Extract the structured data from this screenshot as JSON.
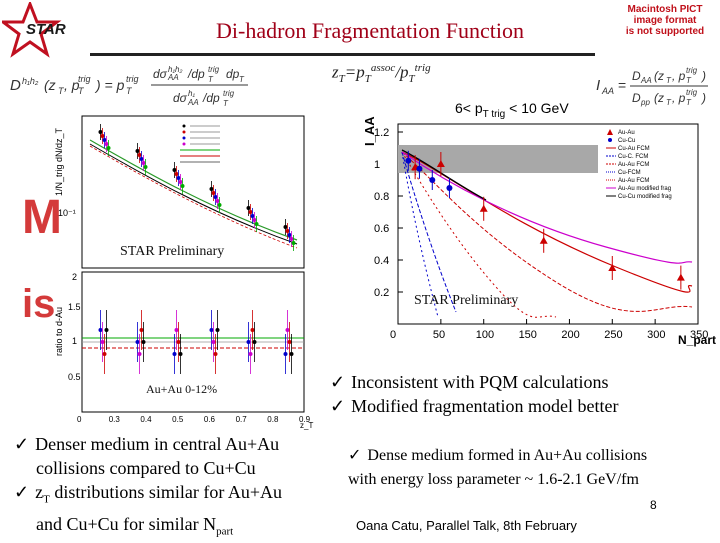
{
  "title": "Di-hadron Fragmentation Function",
  "logo_text": "STAR",
  "pict_placeholder": [
    "Macintosh PICT",
    "image format",
    "is not supported"
  ],
  "formulas": {
    "zt": {
      "base": "z",
      "sub1": "T",
      "eq": "=p",
      "sub2": "T",
      "sup2": "assoc",
      "slash": "/p",
      "sub3": "T",
      "sup3": "trig"
    }
  },
  "range_label": {
    "pre": "6< p",
    "sub": "T trig",
    "post": " < 10 GeV"
  },
  "left_panel": {
    "top_ylabel": "1/N_trig dN/dz_T",
    "bottom_ylabel": "ratio to d-Au",
    "xlabel": "z_T",
    "y_ticks_top": [
      "10⁻¹"
    ],
    "y_ticks_bottom": [
      "0.5",
      "1",
      "1.5",
      "2"
    ],
    "x_ticks": [
      "0",
      "0.3",
      "0.4",
      "0.5",
      "0.6",
      "0.7",
      "0.8",
      "0.9"
    ],
    "centrality_label": "Au+Au 0-12%",
    "preliminary_label": "STAR Preliminary"
  },
  "right_panel": {
    "ylabel": "I_AA",
    "xlabel": "N_part",
    "preliminary_label": "STAR Preliminary",
    "y_ticks": [
      "0.2",
      "0.4",
      "0.6",
      "0.8",
      "1",
      "1.2"
    ],
    "x_ticks": [
      "0",
      "50",
      "100",
      "150",
      "200",
      "250",
      "300",
      "350"
    ],
    "legend": [
      "Au-Au",
      "Cu-Cu",
      "Cu-Au FCM",
      "Cu-C. FCM",
      "Au-Au FCM",
      "Cu-FCM",
      "Au-Au FCM",
      "Au-Au modified frag",
      "Cu-Cu modified frag"
    ]
  },
  "bullets_left": [
    {
      "text": "Denser medium in central Au+Au"
    },
    {
      "text": "collisions compared to Cu+Cu"
    },
    {
      "pre": "z",
      "sub": "T",
      "text": " distributions similar for Au+Au"
    },
    {
      "text": "and Cu+Cu for similar N",
      "sub2": "part"
    }
  ],
  "bullets_right": [
    "Inconsistent with PQM calculations",
    "Modified fragmentation model better"
  ],
  "bullets_mid": [
    "Dense medium formed in Au+Au collisions",
    "with energy loss parameter ~ 1.6-2.1 GeV/fm"
  ],
  "page_number": "8",
  "footer": "Oana Catu, Parallel Talk, 8th February",
  "chart_data": [
    {
      "type": "scatter",
      "title": "",
      "xlabel": "z_T",
      "ylabel": "1/N_trig dN/dz_T",
      "series": [
        {
          "x": [
            0.35,
            0.45,
            0.55,
            0.65,
            0.75,
            0.85
          ],
          "values": [
            0.32,
            0.22,
            0.15,
            0.1,
            0.07,
            0.045
          ]
        }
      ]
    },
    {
      "type": "scatter",
      "title": "",
      "xlabel": "N_part",
      "ylabel": "I_AA",
      "xlim": [
        0,
        350
      ],
      "ylim": [
        0,
        1.25
      ],
      "series": [
        {
          "name": "Au-Au",
          "x": [
            20,
            50,
            100,
            170,
            250,
            330
          ],
          "values": [
            0.98,
            1.0,
            0.72,
            0.52,
            0.35,
            0.29
          ]
        },
        {
          "name": "Cu-Cu",
          "x": [
            12,
            25,
            40,
            60
          ],
          "values": [
            1.02,
            0.97,
            0.9,
            0.85
          ]
        }
      ]
    }
  ]
}
